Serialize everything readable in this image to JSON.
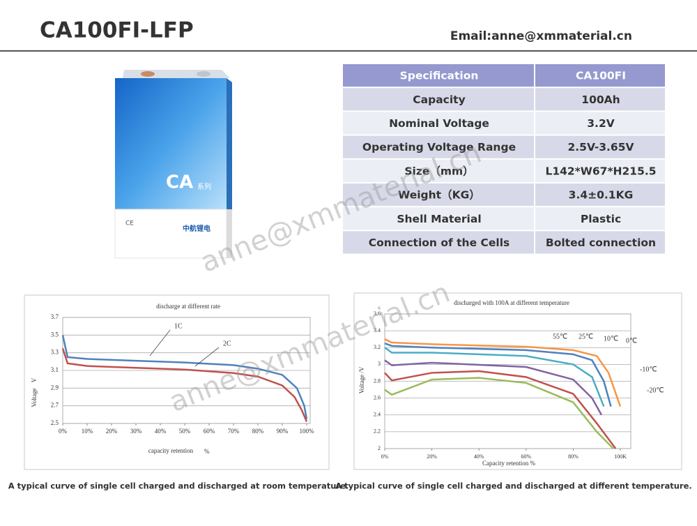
{
  "header": {
    "title": "CA100FI-LFP",
    "email": "Email:anne@xmmaterial.cn"
  },
  "product": {
    "series_mark": "CA",
    "series_word": "系列",
    "cert": "CE",
    "brand": "中航锂电"
  },
  "watermark": "anne@xmmaterial.cn",
  "table": {
    "header": [
      "Specification",
      "CA100FI"
    ],
    "rows": [
      [
        "Capacity",
        "100Ah"
      ],
      [
        "Nominal Voltage",
        "3.2V"
      ],
      [
        "Operating Voltage Range",
        "2.5V-3.65V"
      ],
      [
        "Size（mm）",
        "L142*W67*H215.5"
      ],
      [
        "Weight（KG）",
        "3.4±0.1KG"
      ],
      [
        "Shell Material",
        "Plastic"
      ],
      [
        "Connection of the Cells",
        "Bolted connection"
      ]
    ]
  },
  "chart_data": [
    {
      "type": "line",
      "title": "discharge at different rate",
      "x_label": "capacity retention",
      "x_unit": "%",
      "y_label": "Voltage",
      "y_unit": "V",
      "caption": "A typical curve of single cell charged and discharged at room temperature.",
      "xlim": [
        0,
        100
      ],
      "xticks": [
        {
          "value": 0,
          "label": "0%"
        },
        {
          "value": 10,
          "label": "10%"
        },
        {
          "value": 20,
          "label": "20%"
        },
        {
          "value": 30,
          "label": "30%"
        },
        {
          "value": 40,
          "label": "40%"
        },
        {
          "value": 50,
          "label": "50%"
        },
        {
          "value": 60,
          "label": "60%"
        },
        {
          "value": 70,
          "label": "70%"
        },
        {
          "value": 80,
          "label": "80%"
        },
        {
          "value": 90,
          "label": "90%"
        },
        {
          "value": 100,
          "label": "100%"
        }
      ],
      "ylim": [
        2.5,
        3.7
      ],
      "yticks": [
        2.5,
        2.7,
        2.9,
        3.1,
        3.3,
        3.5,
        3.7
      ],
      "grid": true,
      "series": [
        {
          "name": "1C",
          "color": "#4f81bd",
          "x": [
            0,
            2,
            10,
            30,
            50,
            70,
            80,
            90,
            96,
            99,
            100
          ],
          "values": [
            3.5,
            3.25,
            3.23,
            3.21,
            3.19,
            3.16,
            3.12,
            3.05,
            2.9,
            2.7,
            2.55
          ]
        },
        {
          "name": "2C",
          "color": "#c0504d",
          "x": [
            0,
            2,
            10,
            30,
            50,
            70,
            80,
            90,
            95,
            98,
            100
          ],
          "values": [
            3.35,
            3.18,
            3.15,
            3.13,
            3.11,
            3.07,
            3.03,
            2.93,
            2.8,
            2.65,
            2.52
          ]
        }
      ]
    },
    {
      "type": "line",
      "title": "discharged with 100A at different temperature",
      "x_label": "Capacity retention %",
      "y_label": "Voltage /V",
      "caption": "A typical curve of single cell charged and discharged at different temperature.",
      "xlim": [
        0,
        100
      ],
      "xticks": [
        {
          "value": 0,
          "label": "0%"
        },
        {
          "value": 20,
          "label": "20%"
        },
        {
          "value": 40,
          "label": "40%"
        },
        {
          "value": 60,
          "label": "60%"
        },
        {
          "value": 80,
          "label": "80%"
        },
        {
          "value": 100,
          "label": "100K"
        }
      ],
      "ylim": [
        2,
        3.6
      ],
      "yticks": [
        2,
        2.2,
        2.4,
        2.6,
        2.8,
        3,
        3.2,
        3.4,
        3.6
      ],
      "grid": true,
      "series": [
        {
          "name": "55℃",
          "color": "#f79646",
          "x": [
            0,
            3,
            20,
            60,
            80,
            90,
            95,
            100
          ],
          "values": [
            3.3,
            3.26,
            3.24,
            3.21,
            3.17,
            3.1,
            2.9,
            2.5
          ]
        },
        {
          "name": "25℃",
          "color": "#4f81bd",
          "x": [
            0,
            3,
            20,
            60,
            80,
            88,
            93,
            96
          ],
          "values": [
            3.25,
            3.22,
            3.2,
            3.17,
            3.12,
            3.05,
            2.8,
            2.5
          ]
        },
        {
          "name": "10℃",
          "color": "#4bacc6",
          "x": [
            0,
            3,
            20,
            60,
            80,
            88,
            93
          ],
          "values": [
            3.2,
            3.14,
            3.14,
            3.1,
            3.0,
            2.85,
            2.5
          ]
        },
        {
          "name": "0℃",
          "color": "#8064a2",
          "x": [
            0,
            3,
            20,
            60,
            80,
            88,
            92
          ],
          "values": [
            3.05,
            2.99,
            3.02,
            2.97,
            2.82,
            2.6,
            2.4
          ]
        },
        {
          "name": "-10℃",
          "color": "#c0504d",
          "x": [
            0,
            3,
            20,
            40,
            60,
            80,
            90,
            98
          ],
          "values": [
            2.9,
            2.81,
            2.9,
            2.92,
            2.85,
            2.65,
            2.3,
            2.0
          ]
        },
        {
          "name": "-20℃",
          "color": "#9bbb59",
          "x": [
            0,
            3,
            20,
            40,
            60,
            80,
            90,
            97
          ],
          "values": [
            2.7,
            2.64,
            2.82,
            2.84,
            2.78,
            2.55,
            2.2,
            2.0
          ]
        }
      ]
    }
  ]
}
